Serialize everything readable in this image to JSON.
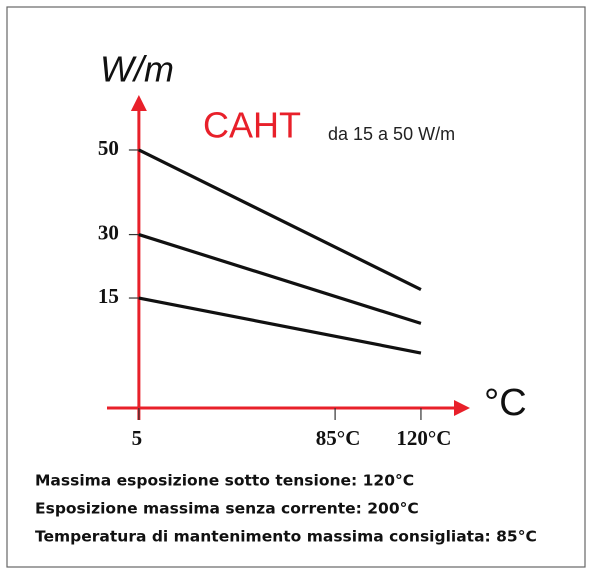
{
  "chart_data": {
    "type": "line",
    "title": "CAHT",
    "title_color": "#e8202a",
    "subtitle": "da 15 a 50 W/m",
    "y_label": "W/m",
    "x_label": "°C",
    "x": [
      5,
      120
    ],
    "series": [
      {
        "color": "#111111",
        "values": [
          50,
          17
        ]
      },
      {
        "color": "#111111",
        "values": [
          30,
          9
        ]
      },
      {
        "color": "#111111",
        "values": [
          15,
          2
        ]
      }
    ],
    "xlim": [
      -8,
      140
    ],
    "xticks": [
      5,
      {
        "value": 85,
        "label": "85°C"
      },
      {
        "value": 120,
        "label": "120°C"
      }
    ],
    "ylim": [
      -11,
      63
    ],
    "yticks": [
      15,
      30,
      50
    ],
    "axis_color": "#e8202a",
    "notes": [
      "Massima esposizione sotto tensione: 120°C",
      "Esposizione massima senza corrente: 200°C",
      "Temperatura di mantenimento massima consigliata: 85°C"
    ]
  }
}
